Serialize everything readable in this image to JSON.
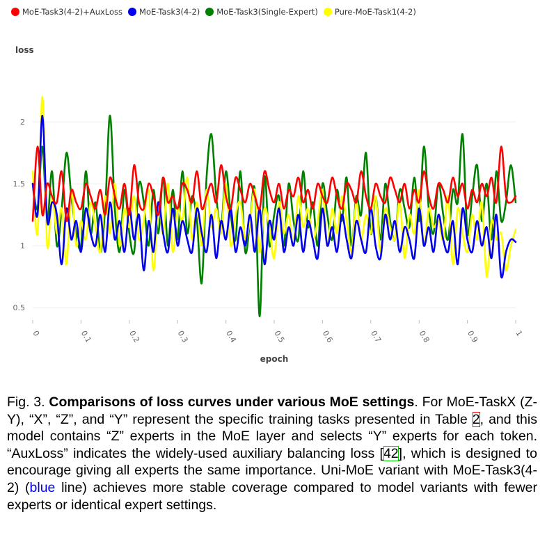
{
  "chart_data": {
    "type": "line",
    "ylabel": "loss",
    "xlabel": "epoch",
    "xlim": [
      0,
      1
    ],
    "ylim": [
      0.4,
      2.45
    ],
    "x_ticks": [
      "0",
      "0.1",
      "0.2",
      "0.3",
      "0.4",
      "0.5",
      "0.6",
      "0.7",
      "0.8",
      "0.9",
      "1"
    ],
    "y_ticks": [
      "0.5",
      "1",
      "1.5",
      "2"
    ],
    "grid": "horizontal",
    "legend_position": "top-left",
    "series": [
      {
        "name": "MoE-Task3(4-2)+AuxLoss",
        "color": "#ff0000",
        "x": [
          0,
          0.01,
          0.02,
          0.03,
          0.04,
          0.05,
          0.06,
          0.07,
          0.08,
          0.09,
          0.1,
          0.11,
          0.12,
          0.13,
          0.14,
          0.15,
          0.16,
          0.17,
          0.18,
          0.19,
          0.2,
          0.21,
          0.22,
          0.23,
          0.24,
          0.25,
          0.26,
          0.27,
          0.28,
          0.29,
          0.3,
          0.31,
          0.32,
          0.33,
          0.34,
          0.35,
          0.36,
          0.37,
          0.38,
          0.39,
          0.4,
          0.41,
          0.42,
          0.43,
          0.44,
          0.45,
          0.46,
          0.47,
          0.48,
          0.49,
          0.5,
          0.51,
          0.52,
          0.53,
          0.54,
          0.55,
          0.56,
          0.57,
          0.58,
          0.59,
          0.6,
          0.61,
          0.62,
          0.63,
          0.64,
          0.65,
          0.66,
          0.67,
          0.68,
          0.69,
          0.7,
          0.71,
          0.72,
          0.73,
          0.74,
          0.75,
          0.76,
          0.77,
          0.78,
          0.79,
          0.8,
          0.81,
          0.82,
          0.83,
          0.84,
          0.85,
          0.86,
          0.87,
          0.88,
          0.89,
          0.9,
          0.91,
          0.92,
          0.93,
          0.94,
          0.95,
          0.96,
          0.97,
          0.98,
          0.99,
          1.0
        ],
        "values": [
          1.2,
          1.8,
          1.25,
          1.5,
          1.4,
          1.35,
          1.6,
          1.2,
          1.45,
          1.35,
          1.3,
          1.5,
          1.4,
          1.3,
          1.45,
          1.25,
          1.55,
          1.4,
          1.3,
          1.5,
          1.25,
          1.65,
          1.35,
          1.3,
          1.5,
          1.4,
          1.25,
          1.55,
          1.35,
          1.4,
          1.3,
          1.5,
          1.45,
          1.35,
          1.6,
          1.3,
          1.4,
          1.5,
          1.35,
          1.65,
          1.4,
          1.3,
          1.55,
          1.45,
          1.35,
          1.5,
          1.4,
          1.3,
          1.6,
          1.45,
          1.35,
          1.5,
          1.3,
          1.45,
          1.4,
          1.55,
          1.35,
          1.45,
          1.3,
          1.5,
          1.4,
          1.35,
          1.55,
          1.4,
          1.3,
          1.5,
          1.45,
          1.35,
          1.6,
          1.4,
          1.3,
          1.5,
          1.4,
          1.35,
          1.55,
          1.45,
          1.35,
          1.5,
          1.3,
          1.45,
          1.35,
          1.6,
          1.4,
          1.3,
          1.5,
          1.45,
          1.35,
          1.55,
          1.4,
          1.5,
          1.3,
          1.45,
          1.35,
          1.5,
          1.4,
          1.55,
          1.35,
          1.8,
          1.4,
          1.35,
          1.4
        ]
      },
      {
        "name": "MoE-Task3(4-2)",
        "color": "#0000ee",
        "x": [
          0,
          0.01,
          0.02,
          0.03,
          0.04,
          0.05,
          0.06,
          0.07,
          0.08,
          0.09,
          0.1,
          0.11,
          0.12,
          0.13,
          0.14,
          0.15,
          0.16,
          0.17,
          0.18,
          0.19,
          0.2,
          0.21,
          0.22,
          0.23,
          0.24,
          0.25,
          0.26,
          0.27,
          0.28,
          0.29,
          0.3,
          0.31,
          0.32,
          0.33,
          0.34,
          0.35,
          0.36,
          0.37,
          0.38,
          0.39,
          0.4,
          0.41,
          0.42,
          0.43,
          0.44,
          0.45,
          0.46,
          0.47,
          0.48,
          0.49,
          0.5,
          0.51,
          0.52,
          0.53,
          0.54,
          0.55,
          0.56,
          0.57,
          0.58,
          0.59,
          0.6,
          0.61,
          0.62,
          0.63,
          0.64,
          0.65,
          0.66,
          0.67,
          0.68,
          0.69,
          0.7,
          0.71,
          0.72,
          0.73,
          0.74,
          0.75,
          0.76,
          0.77,
          0.78,
          0.79,
          0.8,
          0.81,
          0.82,
          0.83,
          0.84,
          0.85,
          0.86,
          0.87,
          0.88,
          0.89,
          0.9,
          0.91,
          0.92,
          0.93,
          0.94,
          0.95,
          0.96,
          0.97,
          0.98,
          0.99,
          1.0
        ],
        "values": [
          1.5,
          1.25,
          2.05,
          1.2,
          1.35,
          1.25,
          0.85,
          1.3,
          1.05,
          1.2,
          0.95,
          1.3,
          1.1,
          1.0,
          1.25,
          0.95,
          1.35,
          1.05,
          1.2,
          0.95,
          1.3,
          1.05,
          1.25,
          0.8,
          1.2,
          0.95,
          1.35,
          1.1,
          0.95,
          1.3,
          1.0,
          1.2,
          1.05,
          0.95,
          1.3,
          1.1,
          0.95,
          1.25,
          0.9,
          1.2,
          1.05,
          1.3,
          0.95,
          1.15,
          1.0,
          1.25,
          0.95,
          1.3,
          0.85,
          1.2,
          1.05,
          1.3,
          0.95,
          1.15,
          1.0,
          1.25,
          0.95,
          1.2,
          1.05,
          0.9,
          1.3,
          1.0,
          1.15,
          0.95,
          1.25,
          1.05,
          0.9,
          1.2,
          1.05,
          0.95,
          1.3,
          1.0,
          0.9,
          1.25,
          1.05,
          1.2,
          0.95,
          1.15,
          1.05,
          0.9,
          1.3,
          1.0,
          1.15,
          0.95,
          1.25,
          1.05,
          0.95,
          1.2,
          0.85,
          1.3,
          1.05,
          0.95,
          1.2,
          1.0,
          1.15,
          0.9,
          1.25,
          0.75,
          0.95,
          1.05,
          1.03
        ]
      },
      {
        "name": "MoE-Task3(Single-Expert)",
        "color": "#008000",
        "x": [
          0,
          0.01,
          0.02,
          0.03,
          0.04,
          0.05,
          0.06,
          0.07,
          0.08,
          0.09,
          0.1,
          0.11,
          0.12,
          0.13,
          0.14,
          0.15,
          0.16,
          0.17,
          0.18,
          0.19,
          0.2,
          0.21,
          0.22,
          0.23,
          0.24,
          0.25,
          0.26,
          0.27,
          0.28,
          0.29,
          0.3,
          0.31,
          0.32,
          0.33,
          0.34,
          0.35,
          0.36,
          0.37,
          0.38,
          0.39,
          0.4,
          0.41,
          0.42,
          0.43,
          0.44,
          0.45,
          0.46,
          0.47,
          0.48,
          0.49,
          0.5,
          0.51,
          0.52,
          0.53,
          0.54,
          0.55,
          0.56,
          0.57,
          0.58,
          0.59,
          0.6,
          0.61,
          0.62,
          0.63,
          0.64,
          0.65,
          0.66,
          0.67,
          0.68,
          0.69,
          0.7,
          0.71,
          0.72,
          0.73,
          0.74,
          0.75,
          0.76,
          0.77,
          0.78,
          0.79,
          0.8,
          0.81,
          0.82,
          0.83,
          0.84,
          0.85,
          0.86,
          0.87,
          0.88,
          0.89,
          0.9,
          0.91,
          0.92,
          0.93,
          0.94,
          0.95,
          0.96,
          0.97,
          0.98,
          0.99,
          1.0
        ],
        "values": [
          1.5,
          1.3,
          1.8,
          1.2,
          1.6,
          1.0,
          1.3,
          1.75,
          1.4,
          1.1,
          1.0,
          1.6,
          1.1,
          1.35,
          0.95,
          1.3,
          2.05,
          1.3,
          0.95,
          1.45,
          1.1,
          0.95,
          1.5,
          1.35,
          1.0,
          1.45,
          1.1,
          1.55,
          1.0,
          1.45,
          1.05,
          1.6,
          1.1,
          1.4,
          1.2,
          0.7,
          1.55,
          1.9,
          1.4,
          1.15,
          1.6,
          1.25,
          1.05,
          1.6,
          0.95,
          1.2,
          1.45,
          0.43,
          1.55,
          1.0,
          1.25,
          1.4,
          1.0,
          1.5,
          1.2,
          1.05,
          1.6,
          1.15,
          1.35,
          1.0,
          1.5,
          1.25,
          1.05,
          1.45,
          1.2,
          1.55,
          1.0,
          1.4,
          1.25,
          1.75,
          1.1,
          1.4,
          1.05,
          1.5,
          1.2,
          1.05,
          1.45,
          1.3,
          1.15,
          1.55,
          1.2,
          1.8,
          1.3,
          1.1,
          1.5,
          1.25,
          1.05,
          1.45,
          1.35,
          1.9,
          1.1,
          1.4,
          1.65,
          1.2,
          1.5,
          1.05,
          1.6,
          1.2,
          1.35,
          1.65,
          1.35
        ]
      },
      {
        "name": "Pure-MoE-Task1(4-2)",
        "color": "#ffff00",
        "x": [
          0,
          0.01,
          0.02,
          0.03,
          0.04,
          0.05,
          0.06,
          0.07,
          0.08,
          0.09,
          0.1,
          0.11,
          0.12,
          0.13,
          0.14,
          0.15,
          0.16,
          0.17,
          0.18,
          0.19,
          0.2,
          0.21,
          0.22,
          0.23,
          0.24,
          0.25,
          0.26,
          0.27,
          0.28,
          0.29,
          0.3,
          0.31,
          0.32,
          0.33,
          0.34,
          0.35,
          0.36,
          0.37,
          0.38,
          0.39,
          0.4,
          0.41,
          0.42,
          0.43,
          0.44,
          0.45,
          0.46,
          0.47,
          0.48,
          0.49,
          0.5,
          0.51,
          0.52,
          0.53,
          0.54,
          0.55,
          0.56,
          0.57,
          0.58,
          0.59,
          0.6,
          0.61,
          0.62,
          0.63,
          0.64,
          0.65,
          0.66,
          0.67,
          0.68,
          0.69,
          0.7,
          0.71,
          0.72,
          0.73,
          0.74,
          0.75,
          0.76,
          0.77,
          0.78,
          0.79,
          0.8,
          0.81,
          0.82,
          0.83,
          0.84,
          0.85,
          0.86,
          0.87,
          0.88,
          0.89,
          0.9,
          0.91,
          0.92,
          0.93,
          0.94,
          0.95,
          0.96,
          0.97,
          0.98,
          0.99,
          1.0
        ],
        "values": [
          1.6,
          1.1,
          2.2,
          1.0,
          1.4,
          1.1,
          1.3,
          0.85,
          1.45,
          1.0,
          1.2,
          1.05,
          1.35,
          1.15,
          0.95,
          1.4,
          1.1,
          1.5,
          1.0,
          1.3,
          1.15,
          1.4,
          1.05,
          1.2,
          1.45,
          0.8,
          1.35,
          1.1,
          1.5,
          0.95,
          1.3,
          1.2,
          1.55,
          1.05,
          1.35,
          1.0,
          1.45,
          1.15,
          1.3,
          1.1,
          1.5,
          1.0,
          1.25,
          1.35,
          1.05,
          1.2,
          1.45,
          0.95,
          1.3,
          1.15,
          0.9,
          1.35,
          1.1,
          1.25,
          1.0,
          1.4,
          1.15,
          1.3,
          1.05,
          1.2,
          1.45,
          1.0,
          1.3,
          1.1,
          1.4,
          1.2,
          0.95,
          1.35,
          1.05,
          1.25,
          1.1,
          1.4,
          0.95,
          1.3,
          1.15,
          1.05,
          1.35,
          0.9,
          1.25,
          1.1,
          1.45,
          1.0,
          1.3,
          1.15,
          1.2,
          1.05,
          1.4,
          0.85,
          1.3,
          1.1,
          0.95,
          1.25,
          1.05,
          1.35,
          0.75,
          1.2,
          1.05,
          1.1,
          0.8,
          1.0,
          1.13
        ]
      }
    ]
  },
  "caption": {
    "fig_label": "Fig. 3.",
    "title": "Comparisons of loss curves under various MoE settings",
    "text_1": ". For MoE-TaskX (Z-Y), “X”, “Z”, and “Y” represent the specific training tasks presented in Table ",
    "ref_table": "2",
    "text_2": ", and this model contains “Z” experts in the MoE layer and selects “Y” experts for each token. “AuxLoss” indicates the widely-used auxiliary balancing loss [",
    "ref_citation": "42",
    "text_3": "], which is designed to encourage giving all experts the same importance. Uni-MoE variant with MoE-Task3(4-2) (",
    "blue_word": "blue",
    "text_4": " line) achieves more stable coverage compared to model variants with fewer experts or identical expert settings."
  }
}
